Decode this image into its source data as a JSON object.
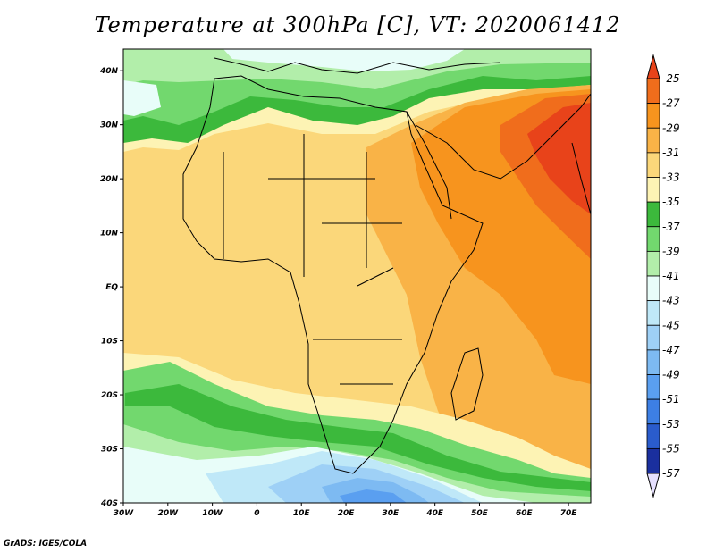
{
  "title": "Temperature at 300hPa [C], VT: 2020061412",
  "credit": "GrADS: IGES/COLA",
  "map": {
    "lon_range": [
      -30,
      75
    ],
    "lat_range": [
      -40,
      44
    ],
    "lat_ticks": [
      {
        "value": 40,
        "label": "40N"
      },
      {
        "value": 30,
        "label": "30N"
      },
      {
        "value": 20,
        "label": "20N"
      },
      {
        "value": 10,
        "label": "10N"
      },
      {
        "value": 0,
        "label": "EQ"
      },
      {
        "value": -10,
        "label": "10S"
      },
      {
        "value": -20,
        "label": "20S"
      },
      {
        "value": -30,
        "label": "30S"
      },
      {
        "value": -40,
        "label": "40S"
      }
    ],
    "lon_ticks": [
      {
        "value": -30,
        "label": "30W"
      },
      {
        "value": -20,
        "label": "20W"
      },
      {
        "value": -10,
        "label": "10W"
      },
      {
        "value": 0,
        "label": "0"
      },
      {
        "value": 10,
        "label": "10E"
      },
      {
        "value": 20,
        "label": "20E"
      },
      {
        "value": 30,
        "label": "30E"
      },
      {
        "value": 40,
        "label": "40E"
      },
      {
        "value": 50,
        "label": "50E"
      },
      {
        "value": 60,
        "label": "60E"
      },
      {
        "value": 70,
        "label": "70E"
      }
    ]
  },
  "colorbar": {
    "levels": [
      "-25",
      "-27",
      "-29",
      "-31",
      "-33",
      "-35",
      "-37",
      "-39",
      "-41",
      "-43",
      "-45",
      "-47",
      "-49",
      "-51",
      "-53",
      "-55",
      "-57"
    ],
    "colors": [
      "#e8431a",
      "#f06d1c",
      "#f7941e",
      "#f9b347",
      "#fbd77a",
      "#fdf3b4",
      "#3cb93c",
      "#72d86e",
      "#b2eeaa",
      "#e8fdf9",
      "#bfe8f8",
      "#9ed0f6",
      "#7dbaf2",
      "#5a9ff0",
      "#3d7fe4",
      "#2a5ccc",
      "#1a2f9e",
      "#0a1a7a"
    ],
    "top_color": "#e8431a",
    "bottom_color": "#e6e0ff"
  }
}
